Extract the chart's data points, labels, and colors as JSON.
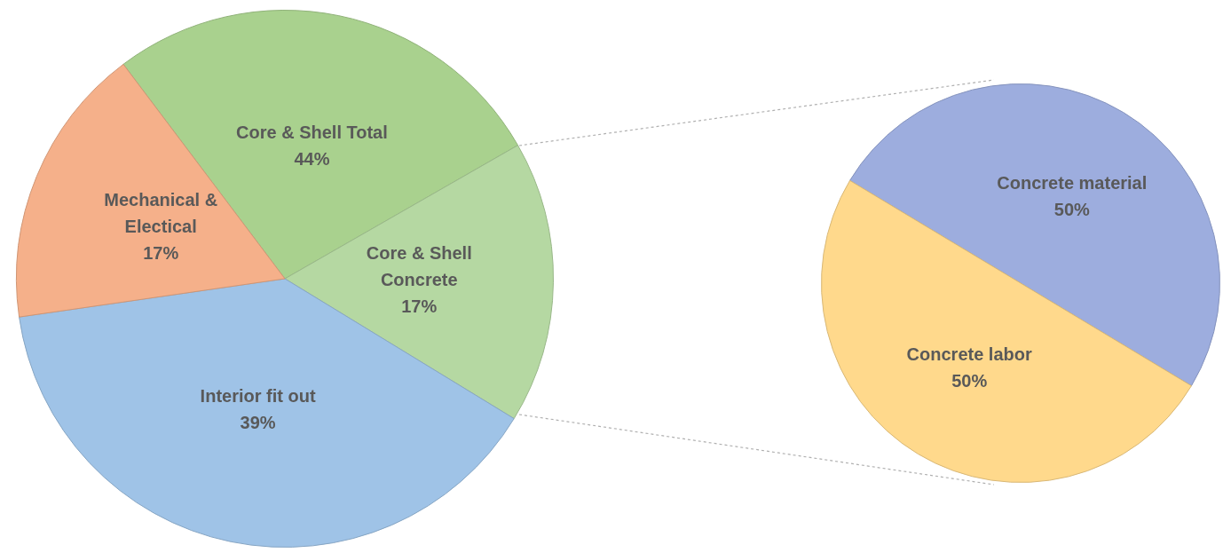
{
  "chart_data": [
    {
      "type": "pie",
      "categories": [
        "Core & Shell Total 44%",
        "Core & Shell Concrete",
        "Interior fit out",
        "Mechanical & Electical"
      ],
      "values": [
        27,
        17,
        39,
        17
      ],
      "value_labels": [
        null,
        "17%",
        "39%",
        "17%"
      ],
      "colors": [
        "#a9d18e",
        "#b5d8a2",
        "#9fc3e7",
        "#f5b08a"
      ],
      "legend": false
    },
    {
      "type": "pie",
      "categories": [
        "Concrete material",
        "Concrete labor"
      ],
      "values": [
        50,
        50
      ],
      "value_labels": [
        "50%",
        "50%"
      ],
      "colors": [
        "#9dadde",
        "#ffd98c"
      ],
      "legend": false
    }
  ]
}
